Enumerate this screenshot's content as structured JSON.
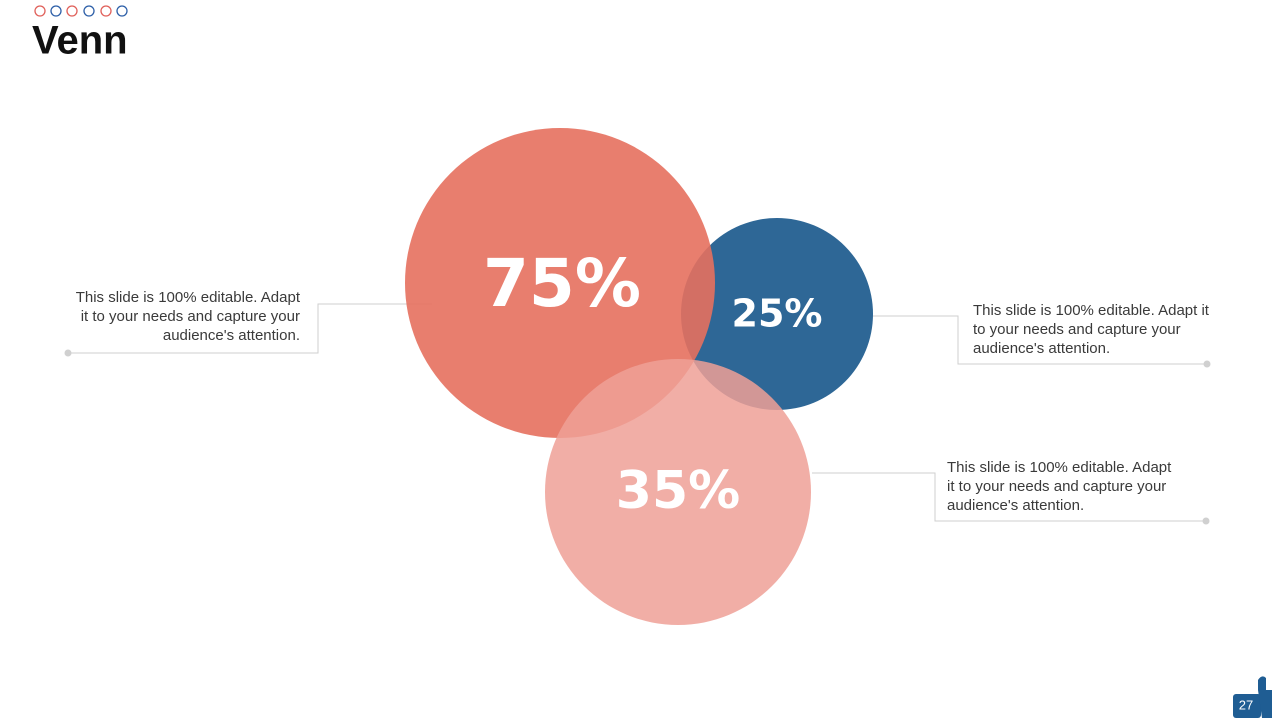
{
  "header": {
    "title": "Venn"
  },
  "circles": [
    {
      "label": "75%"
    },
    {
      "label": "25%"
    },
    {
      "label": "35%"
    }
  ],
  "notes": [
    {
      "lines": [
        "This slide is 100% editable. Adapt",
        "it to your needs and capture your",
        "audience's attention."
      ]
    },
    {
      "lines": [
        "This slide is 100% editable. Adapt it",
        "to your needs and capture your",
        "audience's attention."
      ]
    },
    {
      "lines": [
        "This slide is 100% editable. Adapt",
        "it to your needs and capture your",
        "audience's attention."
      ]
    }
  ],
  "footer": {
    "page": "27"
  }
}
